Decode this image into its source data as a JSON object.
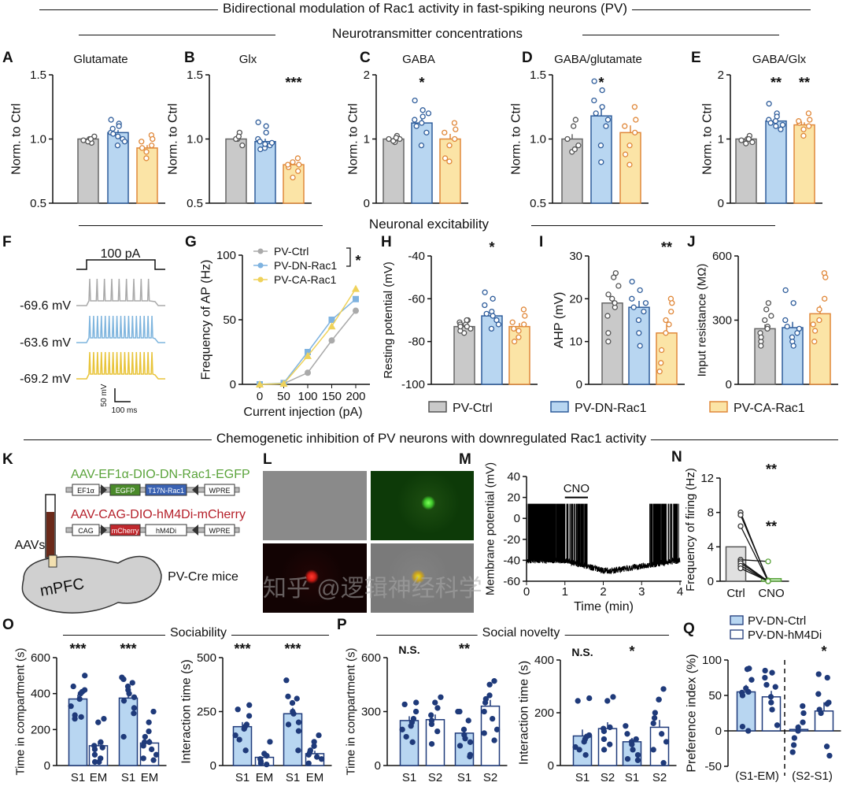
{
  "title": "Bidirectional modulation of Rac1 activity in fast-spiking neurons (PV)",
  "sections": {
    "neuro": "Neurotransmitter concentrations",
    "excit": "Neuronal excitability",
    "chemo": "Chemogenetic inhibition of  PV neurons with downregulated Rac1 activity",
    "sociability": "Sociability",
    "novelty": "Social novelty"
  },
  "panel_labels": [
    "A",
    "B",
    "C",
    "D",
    "E",
    "F",
    "G",
    "H",
    "I",
    "J",
    "K",
    "L",
    "M",
    "N",
    "O",
    "P",
    "Q"
  ],
  "colors": {
    "ctrl_fill": "#c9c9c9",
    "ctrl_dot": "#555555",
    "dn_fill": "#b8d6f1",
    "dn_dot": "#2f5d9b",
    "ca_fill": "#fbe4a6",
    "ca_dot": "#e0883a",
    "navy": "#1f3a7a",
    "green": "#5aa33a",
    "red": "#b5202a"
  },
  "legend_excit": [
    "PV-Ctrl",
    "PV-DN-Rac1",
    "PV-CA-Rac1"
  ],
  "legend_behavior": [
    "PV-DN-Ctrl",
    "PV-DN-hM4Di"
  ],
  "panel_f": {
    "stim": "100 pA",
    "traces": [
      "-69.6 mV",
      "-63.6 mV",
      "-69.2 mV"
    ],
    "scale_v": "50 mV",
    "scale_t": "100 ms"
  },
  "panel_k": {
    "construct1": "AAV-EF1α-DIO-DN-Rac1-EGFP",
    "construct2": "AAV-CAG-DIO-hM4Di-mCherry",
    "parts1": [
      "EF1α",
      "EGFP",
      "T17N-Rac1",
      "WPRE"
    ],
    "parts2": [
      "CAG",
      "mCherry",
      "hM4Di",
      "WPRE"
    ],
    "aavs": "AAVs",
    "region": "mPFC",
    "mice": "PV-Cre mice"
  },
  "watermark": "知乎 @逻辑神经科学",
  "chart_data": [
    {
      "id": "A",
      "type": "bar",
      "title": "Glutamate",
      "ylabel": "Norm. to Ctrl",
      "ylim": [
        0.5,
        1.5
      ],
      "yticks": [
        "0.5",
        "1.0",
        "1.5"
      ],
      "tickvals": [
        0.5,
        1.0,
        1.5
      ],
      "groups": [
        "PV-Ctrl",
        "PV-DN-Rac1",
        "PV-CA-Rac1"
      ],
      "values": [
        1.0,
        1.05,
        0.93
      ],
      "points": [
        [
          0.97,
          1.0,
          1.02,
          0.98,
          1.0,
          0.99
        ],
        [
          1.15,
          1.12,
          1.05,
          1.08,
          1.0,
          0.95,
          1.02,
          1.1,
          0.98,
          1.04
        ],
        [
          1.03,
          1.0,
          0.95,
          0.9,
          0.85,
          0.93,
          0.98
        ]
      ],
      "sig": [
        "",
        "",
        ""
      ]
    },
    {
      "id": "B",
      "type": "bar",
      "title": "Glx",
      "ylabel": "Norm. to Ctrl",
      "ylim": [
        0.5,
        1.5
      ],
      "yticks": [
        "0.5",
        "1.0",
        "1.5"
      ],
      "tickvals": [
        0.5,
        1.0,
        1.5
      ],
      "groups": [
        "PV-Ctrl",
        "PV-DN-Rac1",
        "PV-CA-Rac1"
      ],
      "values": [
        1.0,
        0.98,
        0.8
      ],
      "points": [
        [
          1.05,
          1.0,
          0.95,
          1.0,
          1.02
        ],
        [
          1.13,
          1.1,
          1.0,
          0.98,
          0.95,
          0.93,
          0.96,
          1.05,
          0.97,
          0.92
        ],
        [
          0.85,
          0.8,
          0.75,
          0.7,
          0.82,
          0.78,
          0.8
        ]
      ],
      "sig": [
        "",
        "",
        "***"
      ]
    },
    {
      "id": "C",
      "type": "bar",
      "title": "GABA",
      "ylabel": "Norm. to Ctrl",
      "ylim": [
        0,
        2
      ],
      "yticks": [
        "0",
        "1",
        "2"
      ],
      "tickvals": [
        0,
        1,
        2
      ],
      "groups": [
        "PV-Ctrl",
        "PV-DN-Rac1",
        "PV-CA-Rac1"
      ],
      "values": [
        1.0,
        1.25,
        1.0
      ],
      "points": [
        [
          1.05,
          0.95,
          1.0,
          0.97,
          1.02,
          1.0
        ],
        [
          1.6,
          1.45,
          1.3,
          1.2,
          1.1,
          0.9,
          1.25,
          1.35,
          1.4
        ],
        [
          1.25,
          1.15,
          1.0,
          0.9,
          0.65,
          0.7,
          1.1
        ]
      ],
      "sig": [
        "",
        "*",
        ""
      ]
    },
    {
      "id": "D",
      "type": "bar",
      "title": "GABA/glutamate",
      "ylabel": "Norm. to Ctrl",
      "ylim": [
        0.5,
        1.5
      ],
      "yticks": [
        "0.5",
        "1.0",
        "1.5"
      ],
      "tickvals": [
        0.5,
        1.0,
        1.5
      ],
      "groups": [
        "PV-Ctrl",
        "PV-DN-Rac1",
        "PV-CA-Rac1"
      ],
      "values": [
        1.0,
        1.18,
        1.05
      ],
      "points": [
        [
          1.15,
          1.1,
          0.95,
          0.9,
          0.92,
          1.0
        ],
        [
          1.45,
          1.38,
          1.3,
          1.2,
          1.1,
          0.95,
          0.82,
          1.25,
          1.15
        ],
        [
          1.25,
          1.15,
          1.05,
          0.95,
          0.8,
          0.88,
          1.1
        ]
      ],
      "sig": [
        "",
        "*",
        ""
      ]
    },
    {
      "id": "E",
      "type": "bar",
      "title": "GABA/Glx",
      "ylabel": "Norm. to Ctrl",
      "ylim": [
        0,
        2
      ],
      "yticks": [
        "0",
        "1",
        "2"
      ],
      "tickvals": [
        0,
        1,
        2
      ],
      "groups": [
        "PV-Ctrl",
        "PV-DN-Rac1",
        "PV-CA-Rac1"
      ],
      "values": [
        1.0,
        1.28,
        1.22
      ],
      "points": [
        [
          1.05,
          1.0,
          0.95,
          0.93,
          1.0,
          0.98
        ],
        [
          1.55,
          1.4,
          1.3,
          1.25,
          1.15,
          1.28,
          1.2,
          1.35,
          1.22
        ],
        [
          1.4,
          1.3,
          1.2,
          1.15,
          1.05,
          1.25,
          1.28
        ]
      ],
      "sig": [
        "",
        "**",
        "**"
      ]
    },
    {
      "id": "G",
      "type": "line",
      "xlabel": "Current injection (pA)",
      "ylabel": "Frequency of AP (Hz)",
      "x": [
        0,
        50,
        100,
        150,
        200
      ],
      "xticks": [
        "0",
        "50",
        "100",
        "150",
        "200"
      ],
      "ylim": [
        0,
        100
      ],
      "yticks": [
        "0",
        "50",
        "100"
      ],
      "tickvals": [
        0,
        50,
        100
      ],
      "series": [
        {
          "name": "PV-Ctrl",
          "values": [
            0,
            0.5,
            9,
            34,
            57
          ]
        },
        {
          "name": "PV-DN-Rac1",
          "values": [
            0,
            1,
            25,
            50,
            66
          ]
        },
        {
          "name": "PV-CA-Rac1",
          "values": [
            0,
            0.5,
            22,
            45,
            74
          ]
        }
      ],
      "sig": "*"
    },
    {
      "id": "H",
      "type": "bar",
      "ylabel": "Resting potential (mV)",
      "ylim": [
        -100,
        -40
      ],
      "yticks": [
        "-100",
        "-80",
        "-60",
        "-40"
      ],
      "tickvals": [
        -100,
        -80,
        -60,
        -40
      ],
      "base": -100,
      "groups": [
        "PV-Ctrl",
        "PV-DN-Rac1",
        "PV-CA-Rac1"
      ],
      "values": [
        -73,
        -68,
        -73
      ],
      "points": [
        [
          -70,
          -72,
          -74,
          -76,
          -73,
          -71,
          -75,
          -72,
          -70,
          -73
        ],
        [
          -57,
          -60,
          -63,
          -67,
          -70,
          -74,
          -66,
          -68,
          -72
        ],
        [
          -65,
          -68,
          -72,
          -75,
          -78,
          -80,
          -74,
          -71
        ]
      ],
      "sig": [
        "",
        "*",
        ""
      ]
    },
    {
      "id": "I",
      "type": "bar",
      "ylabel": "AHP (mV)",
      "ylim": [
        0,
        30
      ],
      "yticks": [
        "0",
        "10",
        "20",
        "30"
      ],
      "tickvals": [
        0,
        10,
        20,
        30
      ],
      "groups": [
        "PV-Ctrl",
        "PV-DN-Rac1",
        "PV-CA-Rac1"
      ],
      "values": [
        19,
        18,
        12
      ],
      "points": [
        [
          26,
          25,
          23,
          20,
          18,
          16,
          12,
          10,
          19,
          21
        ],
        [
          24,
          22,
          20,
          18,
          17,
          15,
          12,
          9,
          19
        ],
        [
          20,
          19,
          17,
          15,
          12,
          8,
          5,
          3,
          14
        ]
      ],
      "sig": [
        "",
        "",
        "**"
      ]
    },
    {
      "id": "J",
      "type": "bar",
      "ylabel": "Input resistance (MΩ)",
      "ylim": [
        0,
        600
      ],
      "yticks": [
        "0",
        "300",
        "600"
      ],
      "tickvals": [
        0,
        300,
        600
      ],
      "groups": [
        "PV-Ctrl",
        "PV-DN-Rac1",
        "PV-CA-Rac1"
      ],
      "values": [
        260,
        265,
        330
      ],
      "points": [
        [
          380,
          350,
          320,
          300,
          270,
          240,
          200,
          180,
          260,
          220
        ],
        [
          440,
          380,
          300,
          270,
          240,
          220,
          200,
          180,
          260
        ],
        [
          520,
          500,
          400,
          350,
          300,
          250,
          200,
          280
        ]
      ],
      "sig": [
        "",
        "",
        ""
      ]
    },
    {
      "id": "M",
      "type": "line",
      "xlabel": "Time (min)",
      "ylabel": "Membrane potential (mV)",
      "xlim": [
        0,
        4
      ],
      "xticks": [
        "0",
        "1",
        "2",
        "3",
        "4"
      ],
      "ylim": [
        -60,
        40
      ],
      "yticks": [
        "-60",
        "-40",
        "-20",
        "0",
        "20",
        "40"
      ],
      "tickvals": [
        -60,
        -40,
        -20,
        0,
        20,
        40
      ],
      "annotation": "CNO",
      "cno_interval": [
        1,
        1.6
      ]
    },
    {
      "id": "N",
      "type": "bar",
      "ylabel": "Frequency of firing (Hz)",
      "ylim": [
        0,
        12
      ],
      "yticks": [
        "0",
        "4",
        "8",
        "12"
      ],
      "tickvals": [
        0,
        4,
        8,
        12
      ],
      "groups": [
        "Ctrl",
        "CNO"
      ],
      "values": [
        4.0,
        0.3
      ],
      "paired": [
        [
          8,
          0
        ],
        [
          7.7,
          0.1
        ],
        [
          6.4,
          0
        ],
        [
          2.5,
          2.3
        ],
        [
          2.3,
          0
        ],
        [
          2.1,
          0
        ],
        [
          1.8,
          0
        ],
        [
          1.5,
          0
        ]
      ],
      "sig": [
        "",
        "**"
      ]
    },
    {
      "id": "O1",
      "type": "bar",
      "ylabel": "Time in compartment (s)",
      "ylim": [
        0,
        600
      ],
      "yticks": [
        "0",
        "200",
        "400",
        "600"
      ],
      "tickvals": [
        0,
        200,
        400,
        600
      ],
      "groups": [
        "S1",
        "EM",
        "S1",
        "EM"
      ],
      "values": [
        370,
        110,
        375,
        125
      ],
      "points": [
        [
          500,
          440,
          420,
          410,
          400,
          370,
          330,
          280,
          270,
          260
        ],
        [
          260,
          240,
          130,
          110,
          90,
          60,
          40,
          20,
          20,
          100
        ],
        [
          490,
          480,
          460,
          440,
          420,
          400,
          380,
          360,
          320,
          290,
          160
        ],
        [
          300,
          240,
          190,
          160,
          130,
          110,
          90,
          60,
          40,
          30,
          130
        ]
      ],
      "sig": [
        "***",
        "",
        "***",
        ""
      ]
    },
    {
      "id": "O2",
      "type": "bar",
      "ylabel": "Interaction time (s)",
      "ylim": [
        0,
        500
      ],
      "yticks": [
        "0",
        "250",
        "500"
      ],
      "tickvals": [
        0,
        250,
        500
      ],
      "groups": [
        "S1",
        "EM",
        "S1",
        "EM"
      ],
      "values": [
        180,
        38,
        240,
        55
      ],
      "points": [
        [
          280,
          260,
          230,
          190,
          180,
          170,
          140,
          120,
          70
        ],
        [
          110,
          55,
          45,
          30,
          20,
          10,
          5
        ],
        [
          395,
          320,
          310,
          290,
          250,
          240,
          200,
          190,
          160,
          70
        ],
        [
          140,
          110,
          90,
          70,
          60,
          50,
          40,
          30,
          10
        ]
      ],
      "sig": [
        "***",
        "",
        "***",
        ""
      ]
    },
    {
      "id": "P1",
      "type": "bar",
      "ylabel": "Time in compartment (s)",
      "ylim": [
        0,
        600
      ],
      "yticks": [
        "0",
        "300",
        "600"
      ],
      "tickvals": [
        0,
        300,
        600
      ],
      "groups": [
        "S1",
        "S2",
        "S1",
        "S2"
      ],
      "values": [
        250,
        255,
        180,
        330
      ],
      "points": [
        [
          350,
          340,
          300,
          260,
          240,
          220,
          200,
          160,
          130
        ],
        [
          380,
          350,
          320,
          280,
          250,
          230,
          190,
          120
        ],
        [
          300,
          300,
          250,
          200,
          170,
          150,
          130,
          110,
          60,
          50
        ],
        [
          470,
          450,
          390,
          370,
          350,
          300,
          260,
          200,
          180,
          140
        ]
      ],
      "sig": [
        "N.S.",
        "",
        "**",
        ""
      ]
    },
    {
      "id": "P2",
      "type": "bar",
      "ylabel": "Interaction time (s)",
      "ylim": [
        0,
        400
      ],
      "yticks": [
        "0",
        "200",
        "400"
      ],
      "tickvals": [
        0,
        200,
        400
      ],
      "groups": [
        "S1",
        "S2",
        "S1",
        "S2"
      ],
      "values": [
        112,
        140,
        90,
        145
      ],
      "points": [
        [
          255,
          245,
          115,
          110,
          100,
          90,
          70,
          60,
          40
        ],
        [
          260,
          245,
          145,
          140,
          130,
          100,
          80,
          60
        ],
        [
          150,
          120,
          100,
          90,
          80,
          60,
          40,
          25,
          20
        ],
        [
          290,
          250,
          250,
          200,
          180,
          160,
          120,
          90,
          60,
          10
        ]
      ],
      "sig": [
        "N.S.",
        "",
        "*",
        ""
      ]
    },
    {
      "id": "Q",
      "type": "bar",
      "ylabel": "Preference index (%)",
      "ylim": [
        -50,
        100
      ],
      "yticks": [
        "-50",
        "0",
        "50",
        "100"
      ],
      "tickvals": [
        -50,
        0,
        50,
        100
      ],
      "xticks": [
        "(S1-EM)",
        "(S2-S1)"
      ],
      "groups": [
        "PV-DN-Ctrl",
        "PV-DN-hM4Di",
        "PV-DN-Ctrl",
        "PV-DN-hM4Di"
      ],
      "values": [
        55,
        48,
        2,
        28
      ],
      "points": [
        [
          88,
          87,
          72,
          60,
          55,
          54,
          50,
          6,
          0
        ],
        [
          85,
          82,
          75,
          65,
          62,
          48,
          40,
          30,
          8
        ],
        [
          35,
          25,
          12,
          5,
          0,
          -10,
          -20,
          -30
        ],
        [
          80,
          75,
          52,
          40,
          38,
          30,
          25,
          -22,
          -35
        ]
      ],
      "sig": [
        "",
        "",
        "",
        "*"
      ]
    }
  ]
}
